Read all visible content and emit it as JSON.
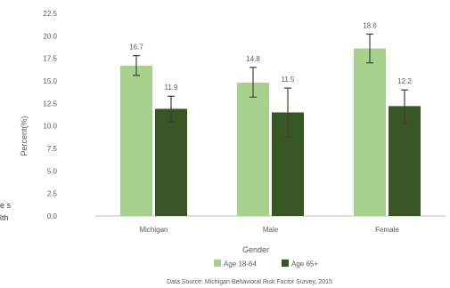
{
  "side_fragments": [
    "e s",
    "lth"
  ],
  "chart_data": {
    "type": "bar",
    "categories": [
      "Michigan",
      "Male",
      "Female"
    ],
    "series": [
      {
        "name": "Age 18-64",
        "color": "#a9d18e",
        "values": [
          16.7,
          14.8,
          18.6
        ],
        "error_low": [
          15.6,
          13.2,
          17.0
        ],
        "error_high": [
          17.8,
          16.5,
          20.2
        ]
      },
      {
        "name": "Age 65+",
        "color": "#375623",
        "values": [
          11.9,
          11.5,
          12.2
        ],
        "error_low": [
          10.5,
          8.8,
          10.3
        ],
        "error_high": [
          13.3,
          14.2,
          14.0
        ]
      }
    ],
    "value_labels": [
      [
        "16.7",
        "14.8",
        "18.6"
      ],
      [
        "11.9",
        "11.5",
        "12.2"
      ]
    ],
    "xlabel": "Gender",
    "ylabel": "Percent(%)",
    "ylim": [
      0,
      22.5
    ],
    "yticks": [
      "0.0",
      "2.5",
      "5.0",
      "7.5",
      "10.0",
      "12.5",
      "15.0",
      "17.5",
      "20.0",
      "22.5"
    ],
    "grid": false,
    "legend": "bottom",
    "source": "Data Source: Michigan Behavioral Risk Factor Survey, 2015"
  }
}
